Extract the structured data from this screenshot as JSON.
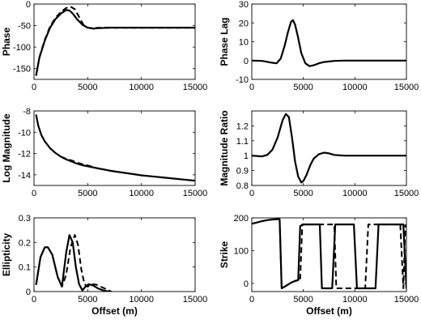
{
  "chart_data": [
    {
      "id": "phase",
      "type": "line",
      "ylabel": "Phase",
      "xlabel": "",
      "xlim": [
        0,
        15000
      ],
      "ylim": [
        -175,
        0
      ],
      "xticks": [
        "0",
        "5000",
        "10000",
        "15000"
      ],
      "yticks": [
        "-150",
        "-100",
        "-50",
        "0"
      ],
      "series": [
        {
          "style": "solid",
          "x": [
            200,
            500,
            1000,
            1500,
            2000,
            2500,
            3000,
            3300,
            3600,
            4000,
            4500,
            5000,
            5500,
            6000,
            7000,
            9000,
            12000,
            15000
          ],
          "y": [
            -165,
            -125,
            -85,
            -55,
            -35,
            -22,
            -14,
            -15,
            -22,
            -35,
            -48,
            -55,
            -57,
            -56,
            -55,
            -55,
            -55,
            -55
          ]
        },
        {
          "style": "dashed",
          "x": [
            200,
            500,
            1000,
            1500,
            2000,
            2500,
            3000,
            3400,
            3800,
            4200,
            4600,
            5000,
            5500,
            6000,
            7000,
            9000,
            12000,
            15000
          ],
          "y": [
            -165,
            -124,
            -83,
            -52,
            -32,
            -18,
            -9,
            -6,
            -12,
            -30,
            -48,
            -55,
            -56,
            -55,
            -55,
            -55,
            -55,
            -55
          ]
        }
      ]
    },
    {
      "id": "phase-lag",
      "type": "line",
      "ylabel": "Phase Lag",
      "xlabel": "",
      "xlim": [
        0,
        15000
      ],
      "ylim": [
        -10,
        30
      ],
      "xticks": [
        "0",
        "5000",
        "10000",
        "15000"
      ],
      "yticks": [
        "-10",
        "0",
        "10",
        "20",
        "30"
      ],
      "series": [
        {
          "style": "solid",
          "x": [
            0,
            1000,
            1800,
            2400,
            2800,
            3200,
            3500,
            3800,
            4000,
            4200,
            4500,
            4800,
            5200,
            5600,
            6000,
            6500,
            7000,
            8000,
            9000,
            10000,
            15000
          ],
          "y": [
            0,
            -0.2,
            -1,
            -1.5,
            1,
            8,
            15,
            20.5,
            21.5,
            19,
            12,
            4,
            -1.5,
            -3,
            -2.5,
            -1.5,
            -0.8,
            -0.2,
            0,
            0,
            0
          ]
        }
      ]
    },
    {
      "id": "log-magnitude",
      "type": "line",
      "ylabel": "Log Magnitude",
      "xlabel": "",
      "xlim": [
        0,
        15000
      ],
      "ylim": [
        -15,
        -8
      ],
      "xticks": [
        "0",
        "5000",
        "10000",
        "15000"
      ],
      "yticks": [
        "-14",
        "-12",
        "-10",
        "-8"
      ],
      "series": [
        {
          "style": "solid",
          "x": [
            200,
            400,
            700,
            1000,
            1500,
            2000,
            2500,
            3000,
            3500,
            4000,
            4500,
            5000,
            6000,
            7000,
            8000,
            9000,
            10000,
            11000,
            12000,
            13000,
            14000,
            15000
          ],
          "y": [
            -8.4,
            -9.4,
            -10.3,
            -10.85,
            -11.5,
            -11.95,
            -12.3,
            -12.55,
            -12.75,
            -12.95,
            -13.1,
            -13.2,
            -13.4,
            -13.6,
            -13.75,
            -13.9,
            -14.05,
            -14.15,
            -14.25,
            -14.35,
            -14.45,
            -14.55
          ]
        },
        {
          "style": "dashed",
          "x": [
            2500,
            3000,
            3500,
            4000,
            4500,
            5000,
            5500
          ],
          "y": [
            -12.3,
            -12.5,
            -12.65,
            -12.85,
            -13.0,
            -13.12,
            -13.25
          ]
        }
      ]
    },
    {
      "id": "magnitude-ratio",
      "type": "line",
      "ylabel": "Magnitude Ratio",
      "xlabel": "",
      "xlim": [
        0,
        15000
      ],
      "ylim": [
        0.8,
        1.3
      ],
      "xticks": [
        "0",
        "5000",
        "10000",
        "15000"
      ],
      "yticks": [
        "0.8",
        "0.9",
        "1",
        "1.1",
        "1.2"
      ],
      "series": [
        {
          "style": "solid",
          "x": [
            0,
            1000,
            1500,
            2000,
            2500,
            3000,
            3300,
            3600,
            3900,
            4200,
            4500,
            4800,
            5000,
            5300,
            5700,
            6000,
            6500,
            7000,
            7500,
            8000,
            9000,
            10000,
            15000
          ],
          "y": [
            1.0,
            0.995,
            1.005,
            1.04,
            1.12,
            1.24,
            1.28,
            1.26,
            1.12,
            0.96,
            0.86,
            0.82,
            0.83,
            0.87,
            0.94,
            0.98,
            1.01,
            1.02,
            1.015,
            1.005,
            1.0,
            1.0,
            1.0
          ]
        }
      ]
    },
    {
      "id": "ellipticity",
      "type": "line",
      "ylabel": "Ellipticity",
      "xlabel": "Offset (m)",
      "xlim": [
        0,
        15000
      ],
      "ylim": [
        0,
        0.3
      ],
      "xticks": [
        "0",
        "5000",
        "10000",
        "15000"
      ],
      "yticks": [
        "0",
        "0.1",
        "0.2",
        "0.3"
      ],
      "series": [
        {
          "style": "solid",
          "x": [
            200,
            600,
            1000,
            1300,
            1700,
            2200,
            2600,
            3000,
            3300,
            3600,
            3900,
            4200,
            4500,
            4800,
            5100,
            5500,
            6000,
            6500,
            7000
          ],
          "y": [
            0.03,
            0.14,
            0.18,
            0.18,
            0.15,
            0.06,
            0.02,
            0.16,
            0.23,
            0.2,
            0.1,
            0.03,
            0.005,
            0.02,
            0.03,
            0.025,
            0.012,
            0.004,
            0
          ]
        },
        {
          "style": "dashed",
          "x": [
            200,
            600,
            1000,
            1300,
            1700,
            2200,
            2600,
            3000,
            3400,
            3800,
            4100,
            4400,
            4700,
            5000,
            5400,
            5800,
            6300,
            6800,
            7200
          ],
          "y": [
            0.03,
            0.14,
            0.18,
            0.18,
            0.15,
            0.06,
            0.02,
            0.07,
            0.18,
            0.23,
            0.19,
            0.09,
            0.03,
            0.02,
            0.03,
            0.028,
            0.018,
            0.008,
            0
          ]
        }
      ]
    },
    {
      "id": "strike",
      "type": "line",
      "ylabel": "Strike",
      "xlabel": "Offset (m)",
      "xlim": [
        0,
        15000
      ],
      "ylim": [
        -25,
        200
      ],
      "xticks": [
        "0",
        "5000",
        "10000",
        "15000"
      ],
      "yticks": [
        "0",
        "100",
        "200"
      ],
      "series": [
        {
          "style": "solid",
          "x": [
            0,
            500,
            1000,
            1500,
            2000,
            2500,
            2700,
            2900,
            3300,
            3700,
            4000,
            4500,
            4700,
            5000,
            6000,
            6600,
            6800,
            7800,
            8100,
            8300,
            9900,
            10200,
            10400,
            12000,
            12300,
            12500,
            14700,
            15000
          ],
          "y": [
            182,
            186,
            190,
            193,
            195,
            196,
            196,
            -15,
            -8,
            0,
            5,
            10,
            175,
            180,
            180,
            180,
            -15,
            -15,
            180,
            180,
            180,
            -15,
            -15,
            -15,
            180,
            180,
            180,
            -15
          ]
        },
        {
          "style": "dashed",
          "x": [
            2700,
            2900,
            3300,
            3700,
            4000,
            4400,
            4700,
            4900,
            5200,
            5500,
            7500,
            8000,
            8200,
            11000,
            11300,
            11500,
            14400,
            14700,
            14900
          ],
          "y": [
            196,
            -15,
            -8,
            0,
            5,
            10,
            15,
            180,
            180,
            180,
            180,
            180,
            -15,
            -15,
            180,
            180,
            180,
            -15,
            180
          ]
        }
      ]
    }
  ]
}
